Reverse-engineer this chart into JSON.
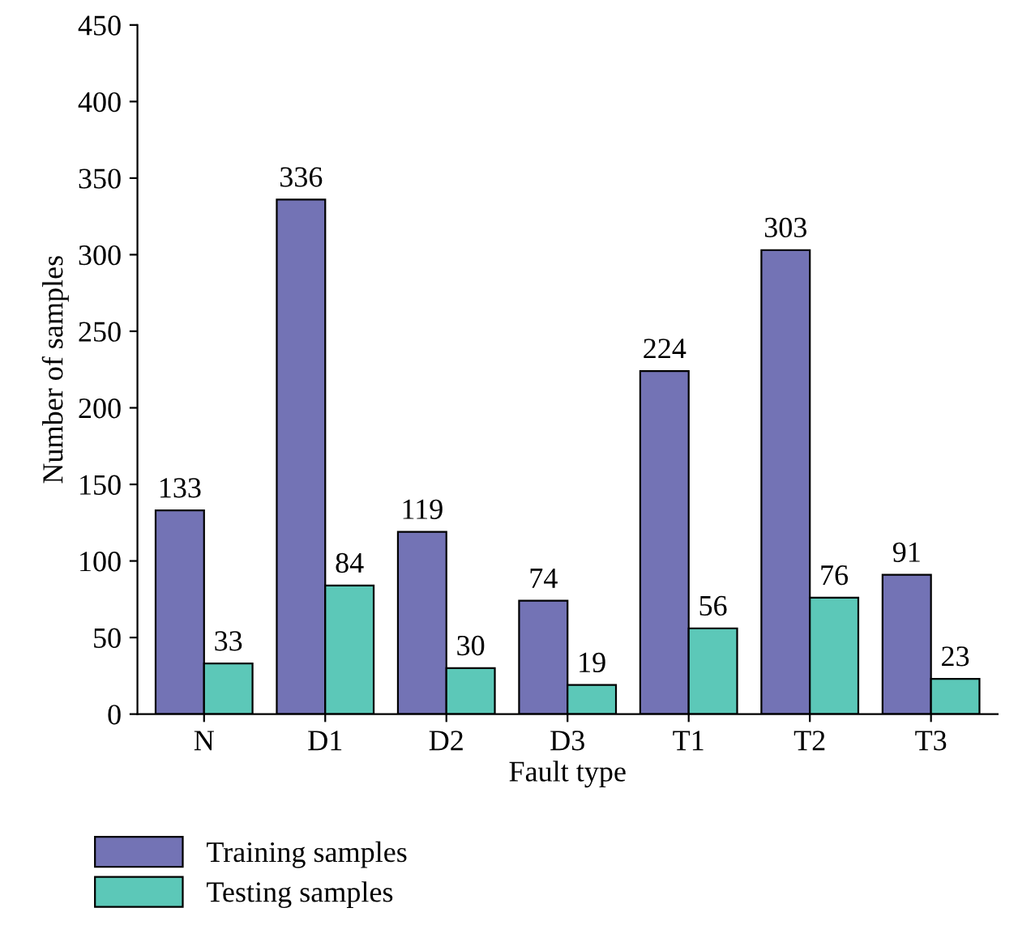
{
  "chart_data": {
    "type": "bar",
    "xlabel": "Fault type",
    "ylabel": "Number of samples",
    "categories": [
      "N",
      "D1",
      "D2",
      "D3",
      "T1",
      "T2",
      "T3"
    ],
    "series": [
      {
        "name": "Training samples",
        "color": "#7373b5",
        "values": [
          133,
          336,
          119,
          74,
          224,
          303,
          91
        ]
      },
      {
        "name": "Testing samples",
        "color": "#5cc8b8",
        "values": [
          33,
          84,
          30,
          19,
          56,
          76,
          23
        ]
      }
    ],
    "ylim": [
      0,
      450
    ],
    "yticks": [
      0,
      50,
      100,
      150,
      200,
      250,
      300,
      350,
      400,
      450
    ],
    "data_labels": true,
    "grid": false,
    "legend": "bottom left"
  }
}
